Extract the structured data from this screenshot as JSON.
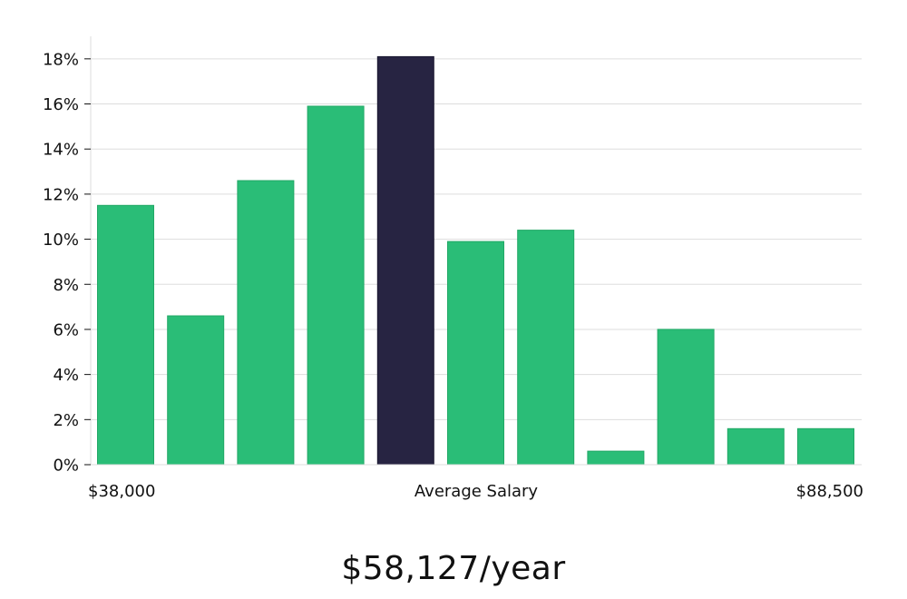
{
  "chart_data": {
    "type": "bar",
    "categories": [
      "1",
      "2",
      "3",
      "4",
      "5",
      "6",
      "7",
      "8",
      "9",
      "10",
      "11"
    ],
    "values": [
      11.5,
      6.6,
      12.6,
      15.9,
      18.1,
      9.9,
      10.4,
      0.6,
      6.0,
      1.6,
      1.6
    ],
    "highlight_index": 4,
    "ylim": [
      0,
      19
    ],
    "yticks": [
      "0%",
      "2%",
      "4%",
      "6%",
      "8%",
      "10%",
      "12%",
      "14%",
      "16%",
      "18%"
    ],
    "ytick_values": [
      0,
      2,
      4,
      6,
      8,
      10,
      12,
      14,
      16,
      18
    ],
    "grid": true,
    "x_labels": {
      "left": "$38,000",
      "center": "Average Salary",
      "right": "$88,500"
    },
    "colors": {
      "bar": "#2abd77",
      "highlight": "#272442",
      "grid": "#dddddd",
      "axis": "#dddddd"
    }
  },
  "salary": "$58,127/year"
}
